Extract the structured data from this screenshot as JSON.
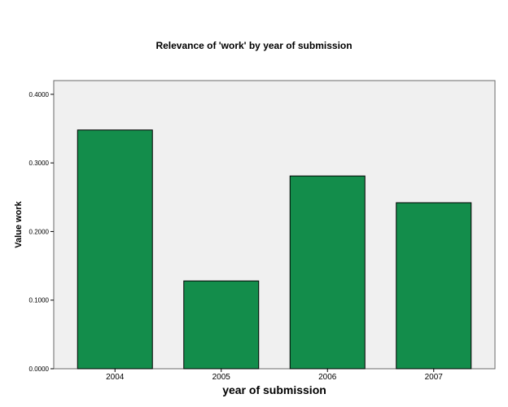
{
  "chart_data": {
    "type": "bar",
    "title": "Relevance of 'work' by year of submission",
    "xlabel": "year of submission",
    "ylabel": "Value work",
    "categories": [
      "2004",
      "2005",
      "2006",
      "2007"
    ],
    "values": [
      0.348,
      0.128,
      0.281,
      0.242
    ],
    "ylim": [
      0,
      0.42
    ],
    "yticks": [
      0.0,
      0.1,
      0.2,
      0.3,
      0.4
    ],
    "ytick_labels": [
      "0.0000",
      "0.1000",
      "0.2000",
      "0.3000",
      "0.4000"
    ],
    "bar_color": "#138d4b",
    "plot_background": "#f0f0f0",
    "grid": false,
    "legend": "none"
  }
}
